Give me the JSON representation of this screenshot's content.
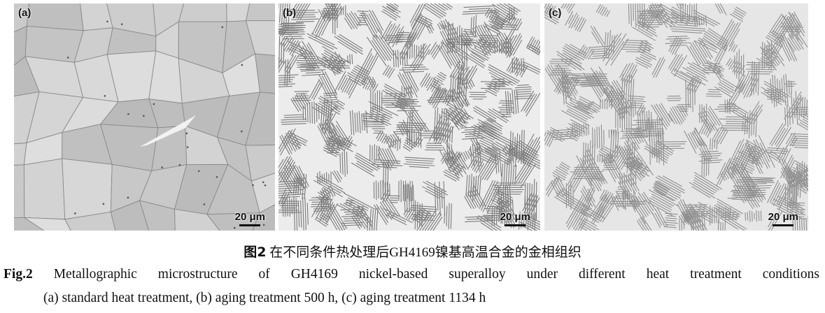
{
  "figure": {
    "panels": [
      {
        "label": "(a)",
        "scale_bar": "20 μm",
        "texture": "equiaxed-grains"
      },
      {
        "label": "(b)",
        "scale_bar": "20 μm",
        "texture": "needle-precipitates"
      },
      {
        "label": "(c)",
        "scale_bar": "20 μm",
        "texture": "needle-precipitates"
      }
    ],
    "caption_cn_label": "图2",
    "caption_cn_text": "在不同条件热处理后GH4169镍基高温合金的金相组织",
    "caption_en_label": "Fig.2",
    "caption_en_text": "Metallographic microstructure of GH4169 nickel-based superalloy under different heat treatment conditions",
    "caption_en_sub": "(a) standard heat treatment, (b) aging treatment 500 h, (c) aging treatment 1134 h"
  }
}
